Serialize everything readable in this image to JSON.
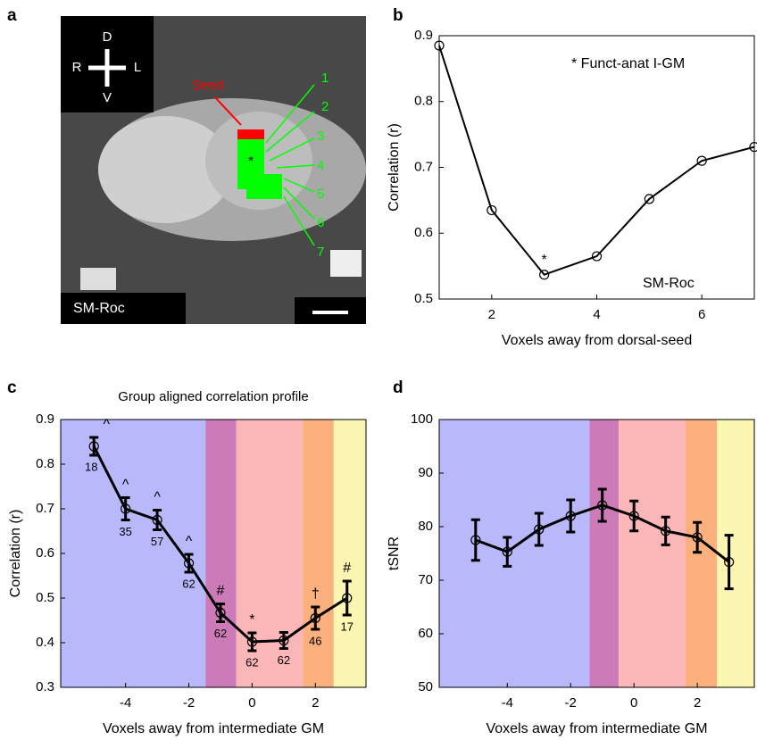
{
  "panel_labels": [
    "a",
    "b",
    "c",
    "d"
  ],
  "image": {
    "orientation": [
      "D",
      "R",
      "L",
      "V"
    ],
    "seed": "Seed",
    "voxels": [
      "1",
      "2",
      "3",
      "4",
      "5",
      "6",
      "7"
    ],
    "marker": "*",
    "subject": "SM-Roc"
  },
  "chart_data": [
    {
      "type": "line",
      "title": null,
      "xlabel": "Voxels away from dorsal-seed",
      "ylabel": "Correlation (r)",
      "x": [
        1,
        2,
        3,
        4,
        5,
        6,
        7
      ],
      "values": [
        0.885,
        0.635,
        0.537,
        0.565,
        0.652,
        0.71,
        0.731
      ],
      "color": "#000000",
      "xlim": [
        1,
        7
      ],
      "xticks": [
        2,
        4,
        6
      ],
      "ylim": [
        0.5,
        0.9
      ],
      "yticks": [
        0.5,
        0.6,
        0.7,
        0.8,
        0.9
      ],
      "annotations": [
        "* Funct-anat I-GM",
        "SM-Roc",
        "*"
      ]
    },
    {
      "type": "line",
      "title": "Group aligned correlation profile",
      "xlabel": "Voxels away from intermediate GM",
      "ylabel": "Correlation (r)",
      "x": [
        -5,
        -4,
        -3,
        -2,
        -1,
        0,
        1,
        2,
        3
      ],
      "values": [
        0.84,
        0.7,
        0.675,
        0.578,
        0.467,
        0.402,
        0.405,
        0.455,
        0.5
      ],
      "errors": [
        0.02,
        0.025,
        0.022,
        0.02,
        0.02,
        0.02,
        0.018,
        0.025,
        0.038
      ],
      "color": "#000000",
      "point_labels": [
        "18",
        "35",
        "57",
        "62",
        "62",
        "62",
        "62",
        "46",
        "17"
      ],
      "symbols": [
        "^",
        "^",
        "^",
        "^",
        "#",
        "*",
        null,
        "†",
        "#"
      ],
      "regions": [
        {
          "start": -6.05,
          "end": -1.47,
          "color": "#b8b8fb"
        },
        {
          "start": -1.47,
          "end": -0.5,
          "color": "#cc7bb8"
        },
        {
          "start": -0.5,
          "end": 1.6,
          "color": "#fbb6b8"
        },
        {
          "start": 1.6,
          "end": 2.58,
          "color": "#fbb07d"
        },
        {
          "start": 2.58,
          "end": 3.6,
          "color": "#fbf7b2"
        }
      ],
      "xlim": [
        -6.05,
        3.6
      ],
      "xticks": [
        -4,
        -2,
        0,
        2
      ],
      "ylim": [
        0.3,
        0.9
      ],
      "yticks": [
        0.3,
        0.4,
        0.5,
        0.6,
        0.7,
        0.8,
        0.9
      ]
    },
    {
      "type": "line",
      "title": null,
      "xlabel": "Voxels away from intermediate GM",
      "ylabel": "tSNR",
      "x": [
        -5,
        -4,
        -3,
        -2,
        -1,
        0,
        1,
        2,
        3
      ],
      "values": [
        77.5,
        75.3,
        79.5,
        82,
        84,
        82,
        79.2,
        78,
        73.4
      ],
      "errors": [
        3.8,
        2.7,
        3,
        3,
        3,
        2.8,
        2.6,
        2.8,
        5
      ],
      "color": "#000000",
      "regions": [
        {
          "start": -6.15,
          "end": -1.4,
          "color": "#b8b8fb"
        },
        {
          "start": -1.4,
          "end": -0.48,
          "color": "#cc7bb8"
        },
        {
          "start": -0.48,
          "end": 1.63,
          "color": "#fbb6b8"
        },
        {
          "start": 1.63,
          "end": 2.62,
          "color": "#fbb07d"
        },
        {
          "start": 2.62,
          "end": 3.8,
          "color": "#fbf7b2"
        }
      ],
      "xlim": [
        -6.15,
        3.8
      ],
      "xticks": [
        -4,
        -2,
        0,
        2
      ],
      "ylim": [
        50,
        100
      ],
      "yticks": [
        50,
        60,
        70,
        80,
        90,
        100
      ]
    }
  ]
}
